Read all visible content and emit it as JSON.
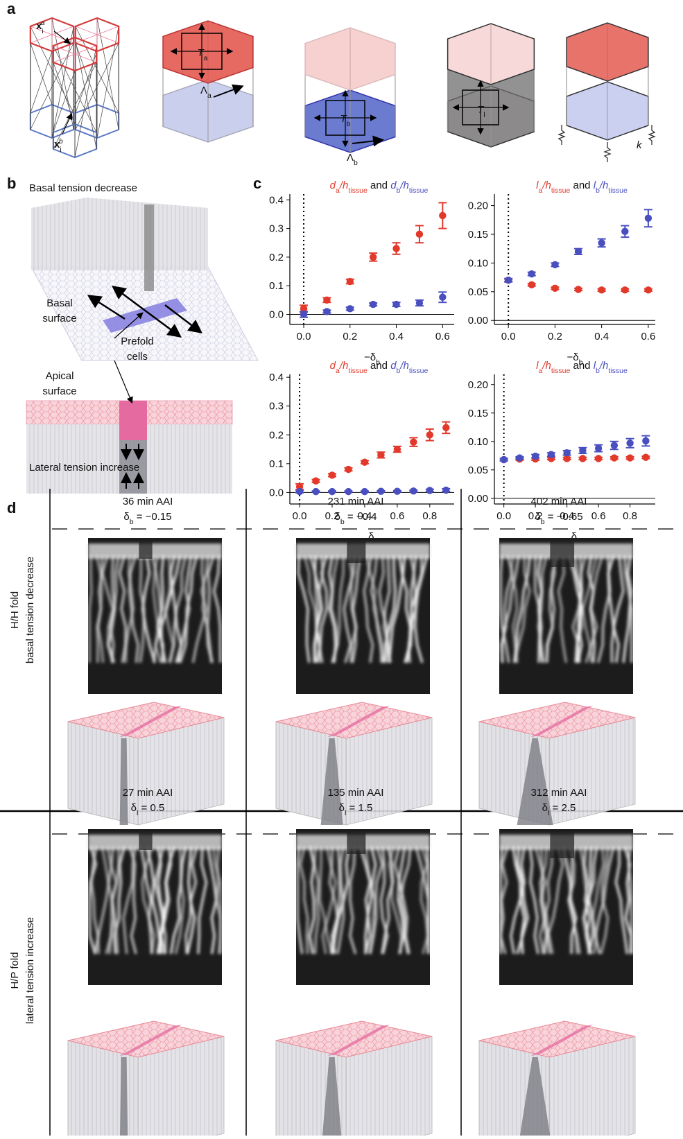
{
  "panel_labels": [
    "a",
    "b",
    "c",
    "d"
  ],
  "panel_a": {
    "labels": [
      [
        {
          "text": "x",
          "bold": true,
          "sub": "i",
          "sup": "a"
        }
      ],
      [
        {
          "text": "x",
          "bold": true,
          "sub": "i",
          "sup": "b"
        }
      ],
      [
        {
          "text": "T",
          "italic": true,
          "sub": "a"
        }
      ],
      [
        {
          "text": "Λ",
          "sub": "a"
        }
      ],
      [
        {
          "text": "T",
          "italic": true,
          "sub": "b"
        }
      ],
      [
        {
          "text": "Λ",
          "sub": "b"
        }
      ],
      [
        {
          "text": "T",
          "italic": true,
          "sub": "l"
        }
      ],
      [
        {
          "text": "k",
          "italic": true
        }
      ]
    ]
  },
  "panel_b": {
    "top_title": "Basal tension decrease",
    "basal_surface": [
      "Basal",
      "surface"
    ],
    "prefold_cells": [
      "Prefold",
      "cells"
    ],
    "apical_surface": [
      "Apical",
      "surface"
    ],
    "bottom_title": "Lateral tension increase"
  },
  "chart_data": [
    {
      "type": "scatter",
      "title": [
        {
          "text": "d",
          "italic": true,
          "sub": "a",
          "color": "#e2392b"
        },
        {
          "text": "/h",
          "italic": true,
          "sub": "tissue",
          "color": "#e2392b"
        },
        {
          "text": " and "
        },
        {
          "text": "d",
          "italic": true,
          "sub": "b",
          "color": "#4a4fbf"
        },
        {
          "text": "/h",
          "italic": true,
          "sub": "tissue",
          "color": "#4a4fbf"
        }
      ],
      "xlabel": [
        {
          "text": "−δ",
          "sub": "b"
        }
      ],
      "x": [
        0,
        0.1,
        0.2,
        0.3,
        0.4,
        0.5,
        0.6
      ],
      "xlim": [
        -0.06,
        0.65
      ],
      "ylim": [
        -0.035,
        0.42
      ],
      "xticks": [
        {
          "value": 0,
          "label": "0.0"
        },
        0.2,
        0.4,
        0.6
      ],
      "yticks": [
        {
          "value": 0,
          "label": "0.0"
        },
        0.1,
        0.2,
        0.3,
        0.4
      ],
      "vline": 0,
      "series": [
        {
          "color": "#e2392b",
          "values": [
            0.02,
            0.05,
            0.115,
            0.2,
            0.23,
            0.28,
            0.345
          ],
          "errors": [
            0.012,
            0.008,
            0.008,
            0.014,
            0.02,
            0.03,
            0.045
          ]
        },
        {
          "color": "#4a4fbf",
          "values": [
            0.0,
            0.01,
            0.02,
            0.035,
            0.035,
            0.04,
            0.06
          ],
          "errors": [
            0.01,
            0.005,
            0.005,
            0.005,
            0.007,
            0.01,
            0.018
          ]
        }
      ]
    },
    {
      "type": "scatter",
      "title": [
        {
          "text": "l",
          "italic": true,
          "sub": "a",
          "color": "#e2392b"
        },
        {
          "text": "/h",
          "italic": true,
          "sub": "tissue",
          "color": "#e2392b"
        },
        {
          "text": " and "
        },
        {
          "text": "l",
          "italic": true,
          "sub": "b",
          "color": "#4a4fbf"
        },
        {
          "text": "/h",
          "italic": true,
          "sub": "tissue",
          "color": "#4a4fbf"
        }
      ],
      "xlabel": [
        {
          "text": "−δ",
          "sub": "b"
        }
      ],
      "x": [
        0,
        0.1,
        0.2,
        0.3,
        0.4,
        0.5,
        0.6
      ],
      "xlim": [
        -0.06,
        0.63
      ],
      "ylim": [
        -0.007,
        0.22
      ],
      "xticks": [
        {
          "value": 0,
          "label": "0.0"
        },
        0.2,
        0.4,
        0.6
      ],
      "yticks": [
        {
          "value": 0,
          "label": "0.00"
        },
        0.05,
        {
          "value": 0.1,
          "label": "0.10"
        },
        0.15,
        {
          "value": 0.2,
          "label": "0.20"
        }
      ],
      "vline": 0,
      "series": [
        {
          "color": "#e2392b",
          "values": [
            0.07,
            0.062,
            0.056,
            0.054,
            0.053,
            0.053,
            0.053
          ],
          "errors": [
            0.002,
            0.002,
            0.002,
            0.002,
            0.002,
            0.002,
            0.002
          ]
        },
        {
          "color": "#4a4fbf",
          "values": [
            0.07,
            0.081,
            0.097,
            0.12,
            0.135,
            0.155,
            0.178
          ],
          "errors": [
            0.003,
            0.003,
            0.003,
            0.005,
            0.007,
            0.01,
            0.015
          ]
        }
      ]
    },
    {
      "type": "scatter",
      "title": [
        {
          "text": "d",
          "italic": true,
          "sub": "a",
          "color": "#e2392b"
        },
        {
          "text": "/h",
          "italic": true,
          "sub": "tissue",
          "color": "#e2392b"
        },
        {
          "text": " and "
        },
        {
          "text": "d",
          "italic": true,
          "sub": "b",
          "color": "#4a4fbf"
        },
        {
          "text": "/h",
          "italic": true,
          "sub": "tissue",
          "color": "#4a4fbf"
        }
      ],
      "xlabel": [
        {
          "text": "δ",
          "sub": "l"
        }
      ],
      "x": [
        0,
        0.1,
        0.2,
        0.3,
        0.4,
        0.5,
        0.6,
        0.7,
        0.8,
        0.9
      ],
      "xlim": [
        -0.06,
        0.95
      ],
      "ylim": [
        -0.04,
        0.41
      ],
      "xticks": [
        {
          "value": 0,
          "label": "0.0"
        },
        0.2,
        0.4,
        0.6,
        0.8
      ],
      "yticks": [
        {
          "value": 0,
          "label": "0.0"
        },
        0.1,
        0.2,
        0.3,
        0.4
      ],
      "vline": 0,
      "series": [
        {
          "color": "#e2392b",
          "values": [
            0.02,
            0.04,
            0.06,
            0.08,
            0.105,
            0.13,
            0.15,
            0.175,
            0.2,
            0.225
          ],
          "errors": [
            0.01,
            0.005,
            0.005,
            0.005,
            0.005,
            0.01,
            0.01,
            0.015,
            0.02,
            0.02
          ]
        },
        {
          "color": "#4a4fbf",
          "values": [
            0.003,
            0.003,
            0.003,
            0.003,
            0.003,
            0.004,
            0.004,
            0.005,
            0.007,
            0.008
          ],
          "errors": [
            0.004,
            0.002,
            0.002,
            0.002,
            0.002,
            0.002,
            0.002,
            0.003,
            0.004,
            0.005
          ]
        }
      ]
    },
    {
      "type": "scatter",
      "title": [
        {
          "text": "l",
          "italic": true,
          "sub": "a",
          "color": "#e2392b"
        },
        {
          "text": "/h",
          "italic": true,
          "sub": "tissue",
          "color": "#e2392b"
        },
        {
          "text": " and "
        },
        {
          "text": "l",
          "italic": true,
          "sub": "b",
          "color": "#4a4fbf"
        },
        {
          "text": "/h",
          "italic": true,
          "sub": "tissue",
          "color": "#4a4fbf"
        }
      ],
      "xlabel": [
        {
          "text": "δ",
          "sub": "l"
        }
      ],
      "x": [
        0,
        0.1,
        0.2,
        0.3,
        0.4,
        0.5,
        0.6,
        0.7,
        0.8,
        0.9
      ],
      "xlim": [
        -0.06,
        0.96
      ],
      "ylim": [
        -0.01,
        0.218
      ],
      "xticks": [
        {
          "value": 0,
          "label": "0.0"
        },
        0.2,
        0.4,
        0.6,
        0.8
      ],
      "yticks": [
        {
          "value": 0,
          "label": "0.00"
        },
        0.05,
        {
          "value": 0.1,
          "label": "0.10"
        },
        0.15,
        {
          "value": 0.2,
          "label": "0.20"
        }
      ],
      "vline": 0,
      "series": [
        {
          "color": "#e2392b",
          "values": [
            0.068,
            0.069,
            0.069,
            0.07,
            0.07,
            0.07,
            0.07,
            0.071,
            0.071,
            0.072
          ],
          "errors": [
            0.002,
            0.002,
            0.002,
            0.002,
            0.002,
            0.002,
            0.002,
            0.002,
            0.002,
            0.002
          ]
        },
        {
          "color": "#4a4fbf",
          "values": [
            0.068,
            0.071,
            0.074,
            0.077,
            0.08,
            0.084,
            0.088,
            0.093,
            0.097,
            0.101
          ],
          "errors": [
            0.002,
            0.002,
            0.003,
            0.003,
            0.004,
            0.005,
            0.006,
            0.007,
            0.008,
            0.009
          ]
        }
      ]
    }
  ],
  "panel_d": {
    "top_columns": [
      {
        "time": "36 min AAI",
        "delta": [
          {
            "text": "δ",
            "sub": "b"
          },
          {
            "text": " = −0.15"
          }
        ]
      },
      {
        "time": "231 min AAI",
        "delta": [
          {
            "text": "δ",
            "sub": "b"
          },
          {
            "text": " = −0.4"
          }
        ]
      },
      {
        "time": "402 min AAI",
        "delta": [
          {
            "text": "δ",
            "sub": "b"
          },
          {
            "text": " = −0.65"
          }
        ]
      }
    ],
    "bottom_columns": [
      {
        "time": "27 min AAI",
        "delta": [
          {
            "text": "δ",
            "sub": "l"
          },
          {
            "text": " = 0.5"
          }
        ]
      },
      {
        "time": "135 min AAI",
        "delta": [
          {
            "text": "δ",
            "sub": "l"
          },
          {
            "text": " = 1.5"
          }
        ]
      },
      {
        "time": "312 min AAI",
        "delta": [
          {
            "text": "δ",
            "sub": "l"
          },
          {
            "text": " = 2.5"
          }
        ]
      }
    ],
    "rows": [
      {
        "fold": "H/H fold",
        "condition": "basal tension decrease"
      },
      {
        "fold": "H/P fold",
        "condition": "lateral tension increase"
      }
    ]
  }
}
